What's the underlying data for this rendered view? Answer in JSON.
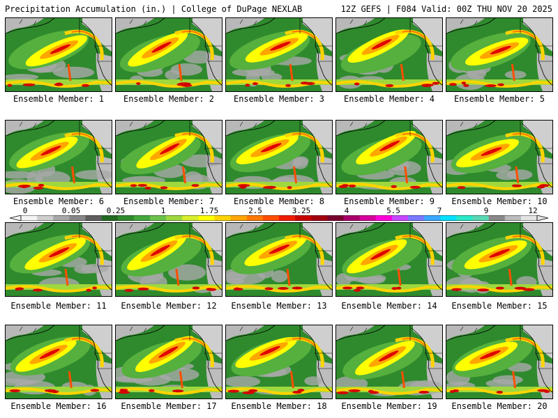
{
  "header": {
    "left": "Precipitation Accumulation (in.) | College of DuPage NEXLAB",
    "right": "12Z GEFS | F084 Valid: 00Z THU NOV 20 2025"
  },
  "legend": {
    "ticks": [
      "0",
      "0.05",
      "0.25",
      "1",
      "1.75",
      "2.5",
      "3.25",
      "4",
      "5.5",
      "7",
      "9",
      "12"
    ],
    "colors": [
      "#f4f4f4",
      "#cfcfcf",
      "#a8a8a8",
      "#888888",
      "#5f5f5f",
      "#236a22",
      "#2f8a2d",
      "#44a83c",
      "#6cc24a",
      "#9fd83e",
      "#d8ee2e",
      "#ffff00",
      "#ffd400",
      "#ffa600",
      "#ff7a00",
      "#ff4e00",
      "#f01c00",
      "#c80000",
      "#a00010",
      "#7a0030",
      "#a8006a",
      "#d6009c",
      "#ff00d8",
      "#c848ff",
      "#7a7aff",
      "#3aa8ff",
      "#00e0ff",
      "#2ae8c8",
      "#58d8b4",
      "#8a8a8a",
      "#bcbcbc",
      "#e4e4e4"
    ]
  },
  "members": [
    {
      "label": "Ensemble Member: 1"
    },
    {
      "label": "Ensemble Member: 2"
    },
    {
      "label": "Ensemble Member: 3"
    },
    {
      "label": "Ensemble Member: 4"
    },
    {
      "label": "Ensemble Member: 5"
    },
    {
      "label": "Ensemble Member: 6"
    },
    {
      "label": "Ensemble Member: 7"
    },
    {
      "label": "Ensemble Member: 8"
    },
    {
      "label": "Ensemble Member: 9"
    },
    {
      "label": "Ensemble Member: 10"
    },
    {
      "label": "Ensemble Member: 11"
    },
    {
      "label": "Ensemble Member: 12"
    },
    {
      "label": "Ensemble Member: 13"
    },
    {
      "label": "Ensemble Member: 14"
    },
    {
      "label": "Ensemble Member: 15"
    },
    {
      "label": "Ensemble Member: 16"
    },
    {
      "label": "Ensemble Member: 17"
    },
    {
      "label": "Ensemble Member: 18"
    },
    {
      "label": "Ensemble Member: 19"
    },
    {
      "label": "Ensemble Member: 20"
    }
  ]
}
